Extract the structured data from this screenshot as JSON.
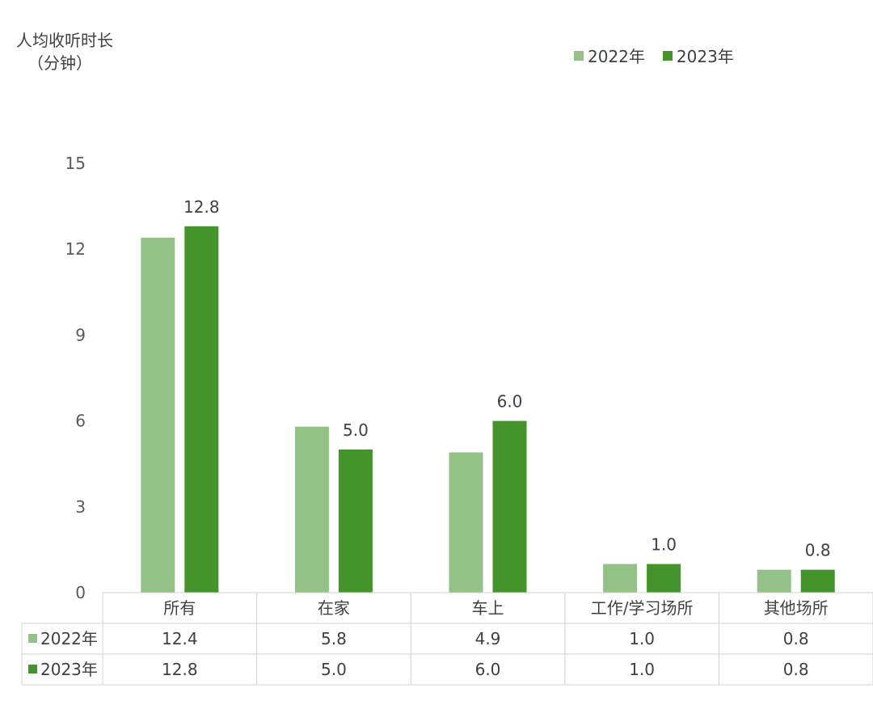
{
  "chart_data": {
    "type": "bar",
    "ylabel_line1": "人均收听时长",
    "ylabel_line2": "（分钟）",
    "categories": [
      "所有",
      "在家",
      "车上",
      "工作/学习场所",
      "其他场所"
    ],
    "series": [
      {
        "name": "2022年",
        "values": [
          12.4,
          5.8,
          4.9,
          1.0,
          0.8
        ],
        "color": "#93c287"
      },
      {
        "name": "2023年",
        "values": [
          12.8,
          5.0,
          6.0,
          1.0,
          0.8
        ],
        "color": "#43942a"
      }
    ],
    "data_labels_series": "2023年",
    "data_labels": [
      "12.8",
      "5.0",
      "6.0",
      "1.0",
      "0.8"
    ],
    "table_rows": [
      {
        "name": "2022年",
        "cells": [
          "12.4",
          "5.8",
          "4.9",
          "1.0",
          "0.8"
        ]
      },
      {
        "name": "2023年",
        "cells": [
          "12.8",
          "5.0",
          "6.0",
          "1.0",
          "0.8"
        ]
      }
    ],
    "ylim": [
      0,
      15
    ],
    "yticks": [
      "0",
      "3",
      "6",
      "9",
      "12",
      "15"
    ],
    "grid": false,
    "legend_position": "top-right",
    "data_table": true
  }
}
